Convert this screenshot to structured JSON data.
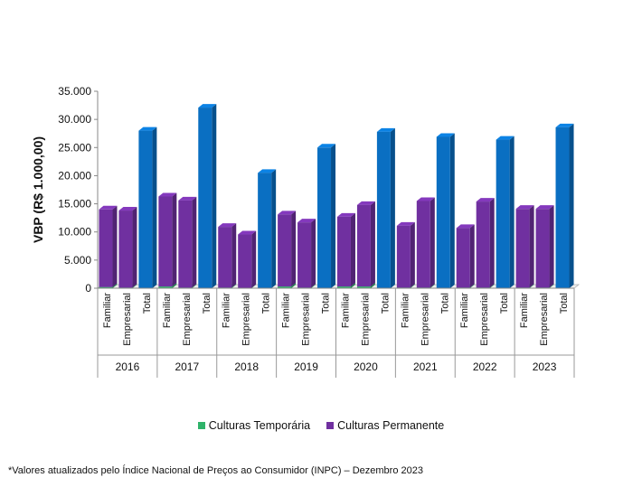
{
  "chart_data": {
    "type": "bar",
    "subtype": "stacked-3d",
    "ylabel": "VBP (R$ 1.000,00)",
    "ylim": [
      0,
      35000
    ],
    "yticks": [
      "0",
      "5.000",
      "10.000",
      "15.000",
      "20.000",
      "25.000",
      "30.000",
      "35.000"
    ],
    "ytick_values": [
      0,
      5000,
      10000,
      15000,
      20000,
      25000,
      30000,
      35000
    ],
    "years": [
      "2016",
      "2017",
      "2018",
      "2019",
      "2020",
      "2021",
      "2022",
      "2023"
    ],
    "subcategories": [
      "Familiar",
      "Empresarial",
      "Total"
    ],
    "series": [
      {
        "name": "Culturas Temporária",
        "color": "#2fb36a",
        "values": [
          [
            200,
            100,
            null
          ],
          [
            300,
            100,
            null
          ],
          [
            100,
            50,
            null
          ],
          [
            300,
            100,
            null
          ],
          [
            300,
            300,
            null
          ],
          [
            100,
            100,
            null
          ],
          [
            100,
            100,
            null
          ],
          [
            100,
            100,
            null
          ]
        ]
      },
      {
        "name": "Culturas Permanente",
        "color": "#7030a0",
        "values": [
          [
            13800,
            13700,
            null
          ],
          [
            16000,
            15500,
            null
          ],
          [
            10800,
            9500,
            null
          ],
          [
            12800,
            11600,
            null
          ],
          [
            12400,
            14500,
            null
          ],
          [
            11000,
            15400,
            null
          ],
          [
            10600,
            15300,
            null
          ],
          [
            14000,
            14000,
            null
          ]
        ]
      },
      {
        "name": "Total",
        "color": "#0a6fc2",
        "values": [
          [
            null,
            null,
            28000
          ],
          [
            null,
            null,
            32100
          ],
          [
            null,
            null,
            20500
          ],
          [
            null,
            null,
            25000
          ],
          [
            null,
            null,
            27800
          ],
          [
            null,
            null,
            26900
          ],
          [
            null,
            null,
            26400
          ],
          [
            null,
            null,
            28600
          ]
        ]
      }
    ]
  },
  "legend": [
    {
      "label": "Culturas Temporária",
      "color": "#2fb36a"
    },
    {
      "label": "Culturas Permanente",
      "color": "#7030a0"
    }
  ],
  "footnote": "*Valores atualizados pelo Índice Nacional de Preços ao Consumidor (INPC) – Dezembro 2023"
}
